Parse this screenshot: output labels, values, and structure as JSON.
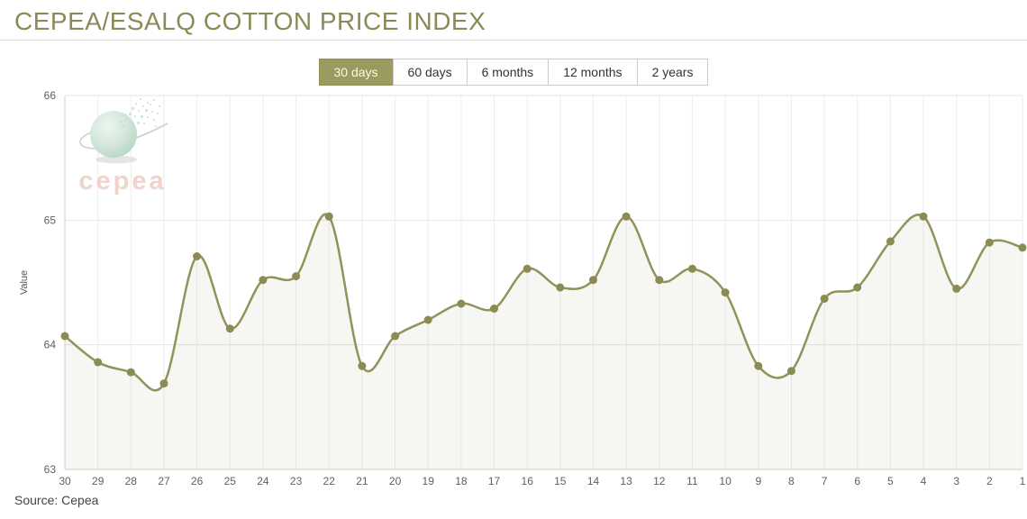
{
  "page": {
    "title": "CEPEA/ESALQ COTTON PRICE INDEX",
    "source": "Source: Cepea"
  },
  "range_buttons": [
    {
      "label": "30 days",
      "active": true
    },
    {
      "label": "60 days",
      "active": false
    },
    {
      "label": "6 months",
      "active": false
    },
    {
      "label": "12 months",
      "active": false
    },
    {
      "label": "2 years",
      "active": false
    }
  ],
  "watermark": {
    "name": "cepea-logo",
    "text": "cepea"
  },
  "theme": {
    "title_color": "#8a8a58",
    "active_button_bg": "#9b9b60",
    "active_button_text": "#faf8e8",
    "line_color": "#92925a",
    "marker_color": "#8b8b53",
    "fill_color": "rgba(146,146,90,0.08)",
    "gridline_color": "#ededed",
    "axis_color": "#cccccc",
    "tick_label_color": "#606060"
  },
  "chart_data": {
    "type": "area",
    "title": "CEPEA/ESALQ COTTON PRICE INDEX",
    "x": [
      30,
      29,
      28,
      27,
      26,
      25,
      24,
      23,
      22,
      21,
      20,
      19,
      18,
      17,
      16,
      15,
      14,
      13,
      12,
      11,
      10,
      9,
      8,
      7,
      6,
      5,
      4,
      3,
      2,
      1
    ],
    "values": [
      64.07,
      63.86,
      63.78,
      63.69,
      64.71,
      64.13,
      64.52,
      64.55,
      65.03,
      63.83,
      64.07,
      64.2,
      64.33,
      64.29,
      64.61,
      64.46,
      64.52,
      65.03,
      64.52,
      64.61,
      64.42,
      63.83,
      63.79,
      64.37,
      64.46,
      64.83,
      65.03,
      64.45,
      64.82,
      64.78
    ],
    "xlabel": "",
    "ylabel": "Value",
    "ylim": [
      63,
      66
    ],
    "yticks": [
      63,
      64,
      65,
      66
    ],
    "grid": true,
    "legend": false,
    "smooth": true,
    "markers": true
  }
}
